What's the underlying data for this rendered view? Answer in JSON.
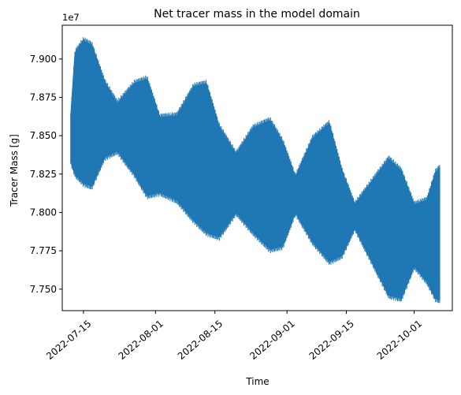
{
  "chart_data": {
    "type": "line",
    "title": "Net tracer mass in the model domain",
    "xlabel": "Time",
    "ylabel": "Tracer Mass [g]",
    "y_offset_label": "1e7",
    "y_scale_factor": 10000000,
    "xlim": [
      "2022-07-10",
      "2022-10-10"
    ],
    "ylim": [
      7.736,
      7.922
    ],
    "x_ticks": [
      "2022-07-15",
      "2022-08-01",
      "2022-08-15",
      "2022-09-01",
      "2022-09-15",
      "2022-10-01"
    ],
    "x_tick_labels": [
      "2022-07-15",
      "2022-08-01",
      "2022-08-15",
      "2022-09-01",
      "2022-09-15",
      "2022-10-01"
    ],
    "y_ticks": [
      7.75,
      7.775,
      7.8,
      7.825,
      7.85,
      7.875,
      7.9
    ],
    "y_tick_labels": [
      "7.750",
      "7.775",
      "7.800",
      "7.825",
      "7.850",
      "7.875",
      "7.900"
    ],
    "grid": false,
    "series": [
      {
        "color": "#1f77b4",
        "note_style": "dense tidal oscillation",
        "envelope": {
          "dates": [
            "2022-07-12",
            "2022-07-13",
            "2022-07-15",
            "2022-07-17",
            "2022-07-20",
            "2022-07-23",
            "2022-07-27",
            "2022-07-30",
            "2022-08-02",
            "2022-08-06",
            "2022-08-10",
            "2022-08-13",
            "2022-08-16",
            "2022-08-20",
            "2022-08-24",
            "2022-08-28",
            "2022-08-31",
            "2022-09-03",
            "2022-09-07",
            "2022-09-11",
            "2022-09-14",
            "2022-09-17",
            "2022-09-21",
            "2022-09-25",
            "2022-09-28",
            "2022-10-01",
            "2022-10-04",
            "2022-10-06",
            "2022-10-07"
          ],
          "upper": [
            7.863,
            7.904,
            7.912,
            7.909,
            7.885,
            7.871,
            7.884,
            7.887,
            7.862,
            7.863,
            7.882,
            7.884,
            7.856,
            7.838,
            7.855,
            7.86,
            7.846,
            7.823,
            7.848,
            7.858,
            7.827,
            7.805,
            7.82,
            7.835,
            7.827,
            7.805,
            7.808,
            7.826,
            7.829
          ],
          "lower": [
            7.833,
            7.825,
            7.819,
            7.817,
            7.836,
            7.84,
            7.825,
            7.811,
            7.813,
            7.808,
            7.795,
            7.787,
            7.784,
            7.8,
            7.787,
            7.776,
            7.778,
            7.8,
            7.781,
            7.768,
            7.772,
            7.79,
            7.768,
            7.746,
            7.744,
            7.765,
            7.755,
            7.744,
            7.743
          ]
        }
      }
    ]
  }
}
